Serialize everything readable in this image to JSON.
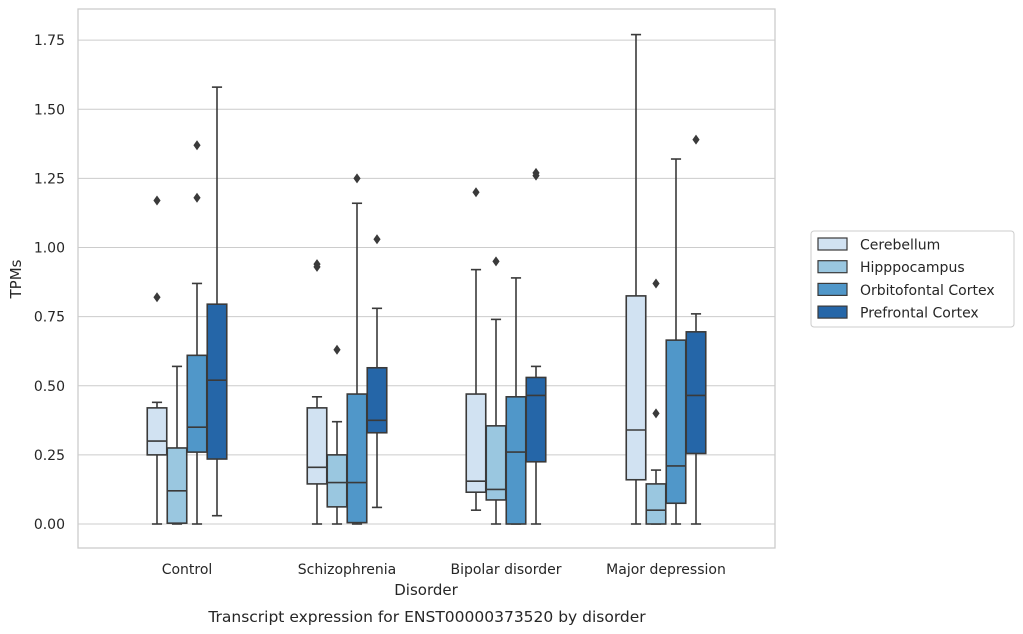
{
  "chart_data": {
    "type": "boxplot",
    "title": "Transcript expression for ENST00000373520 by disorder",
    "xlabel": "Disorder",
    "ylabel": "TPMs",
    "ylim": [
      -0.085,
      1.86
    ],
    "yticks": [
      "0.00",
      "0.25",
      "0.50",
      "0.75",
      "1.00",
      "1.25",
      "1.50",
      "1.75"
    ],
    "ytick_values": [
      0,
      0.25,
      0.5,
      0.75,
      1.0,
      1.25,
      1.5,
      1.75
    ],
    "grid": true,
    "legend_position": "right",
    "categories": [
      "Control",
      "Schizophrenia",
      "Bipolar disorder",
      "Major depression"
    ],
    "series": [
      {
        "name": "Cerebellum",
        "color": "#d1e2f2",
        "boxes": [
          {
            "whislo": 0.0,
            "q1": 0.25,
            "med": 0.3,
            "q3": 0.42,
            "whishi": 0.44,
            "fliers": [
              0.82,
              1.17
            ]
          },
          {
            "whislo": 0.0,
            "q1": 0.145,
            "med": 0.205,
            "q3": 0.42,
            "whishi": 0.46,
            "fliers": [
              0.93,
              0.94
            ]
          },
          {
            "whislo": 0.05,
            "q1": 0.115,
            "med": 0.155,
            "q3": 0.47,
            "whishi": 0.92,
            "fliers": [
              1.2
            ]
          },
          {
            "whislo": 0.0,
            "q1": 0.16,
            "med": 0.34,
            "q3": 0.825,
            "whishi": 1.77,
            "fliers": []
          }
        ]
      },
      {
        "name": "Hipppocampus",
        "color": "#9ac7e0",
        "boxes": [
          {
            "whislo": 0.0,
            "q1": 0.003,
            "med": 0.12,
            "q3": 0.275,
            "whishi": 0.57,
            "fliers": []
          },
          {
            "whislo": 0.0,
            "q1": 0.062,
            "med": 0.15,
            "q3": 0.25,
            "whishi": 0.37,
            "fliers": [
              0.63
            ]
          },
          {
            "whislo": 0.0,
            "q1": 0.087,
            "med": 0.125,
            "q3": 0.355,
            "whishi": 0.74,
            "fliers": [
              0.95
            ]
          },
          {
            "whislo": 0.0,
            "q1": 0.0,
            "med": 0.05,
            "q3": 0.145,
            "whishi": 0.195,
            "fliers": [
              0.4,
              0.87
            ]
          }
        ]
      },
      {
        "name": "Orbitofontal Cortex",
        "color": "#5097c9",
        "boxes": [
          {
            "whislo": 0.0,
            "q1": 0.26,
            "med": 0.35,
            "q3": 0.61,
            "whishi": 0.87,
            "fliers": [
              1.18,
              1.37
            ]
          },
          {
            "whislo": 0.0,
            "q1": 0.005,
            "med": 0.15,
            "q3": 0.47,
            "whishi": 1.16,
            "fliers": [
              1.25
            ]
          },
          {
            "whislo": 0.0,
            "q1": 0.0,
            "med": 0.26,
            "q3": 0.46,
            "whishi": 0.89,
            "fliers": []
          },
          {
            "whislo": 0.0,
            "q1": 0.075,
            "med": 0.21,
            "q3": 0.665,
            "whishi": 1.32,
            "fliers": []
          }
        ]
      },
      {
        "name": "Prefrontal Cortex",
        "color": "#2566a8",
        "boxes": [
          {
            "whislo": 0.03,
            "q1": 0.235,
            "med": 0.52,
            "q3": 0.795,
            "whishi": 1.58,
            "fliers": []
          },
          {
            "whislo": 0.06,
            "q1": 0.33,
            "med": 0.375,
            "q3": 0.565,
            "whishi": 0.78,
            "fliers": [
              1.03
            ]
          },
          {
            "whislo": 0.0,
            "q1": 0.225,
            "med": 0.465,
            "q3": 0.53,
            "whishi": 0.57,
            "fliers": [
              1.26,
              1.27
            ]
          },
          {
            "whislo": 0.0,
            "q1": 0.255,
            "med": 0.465,
            "q3": 0.695,
            "whishi": 0.76,
            "fliers": [
              1.39
            ]
          }
        ]
      }
    ]
  }
}
